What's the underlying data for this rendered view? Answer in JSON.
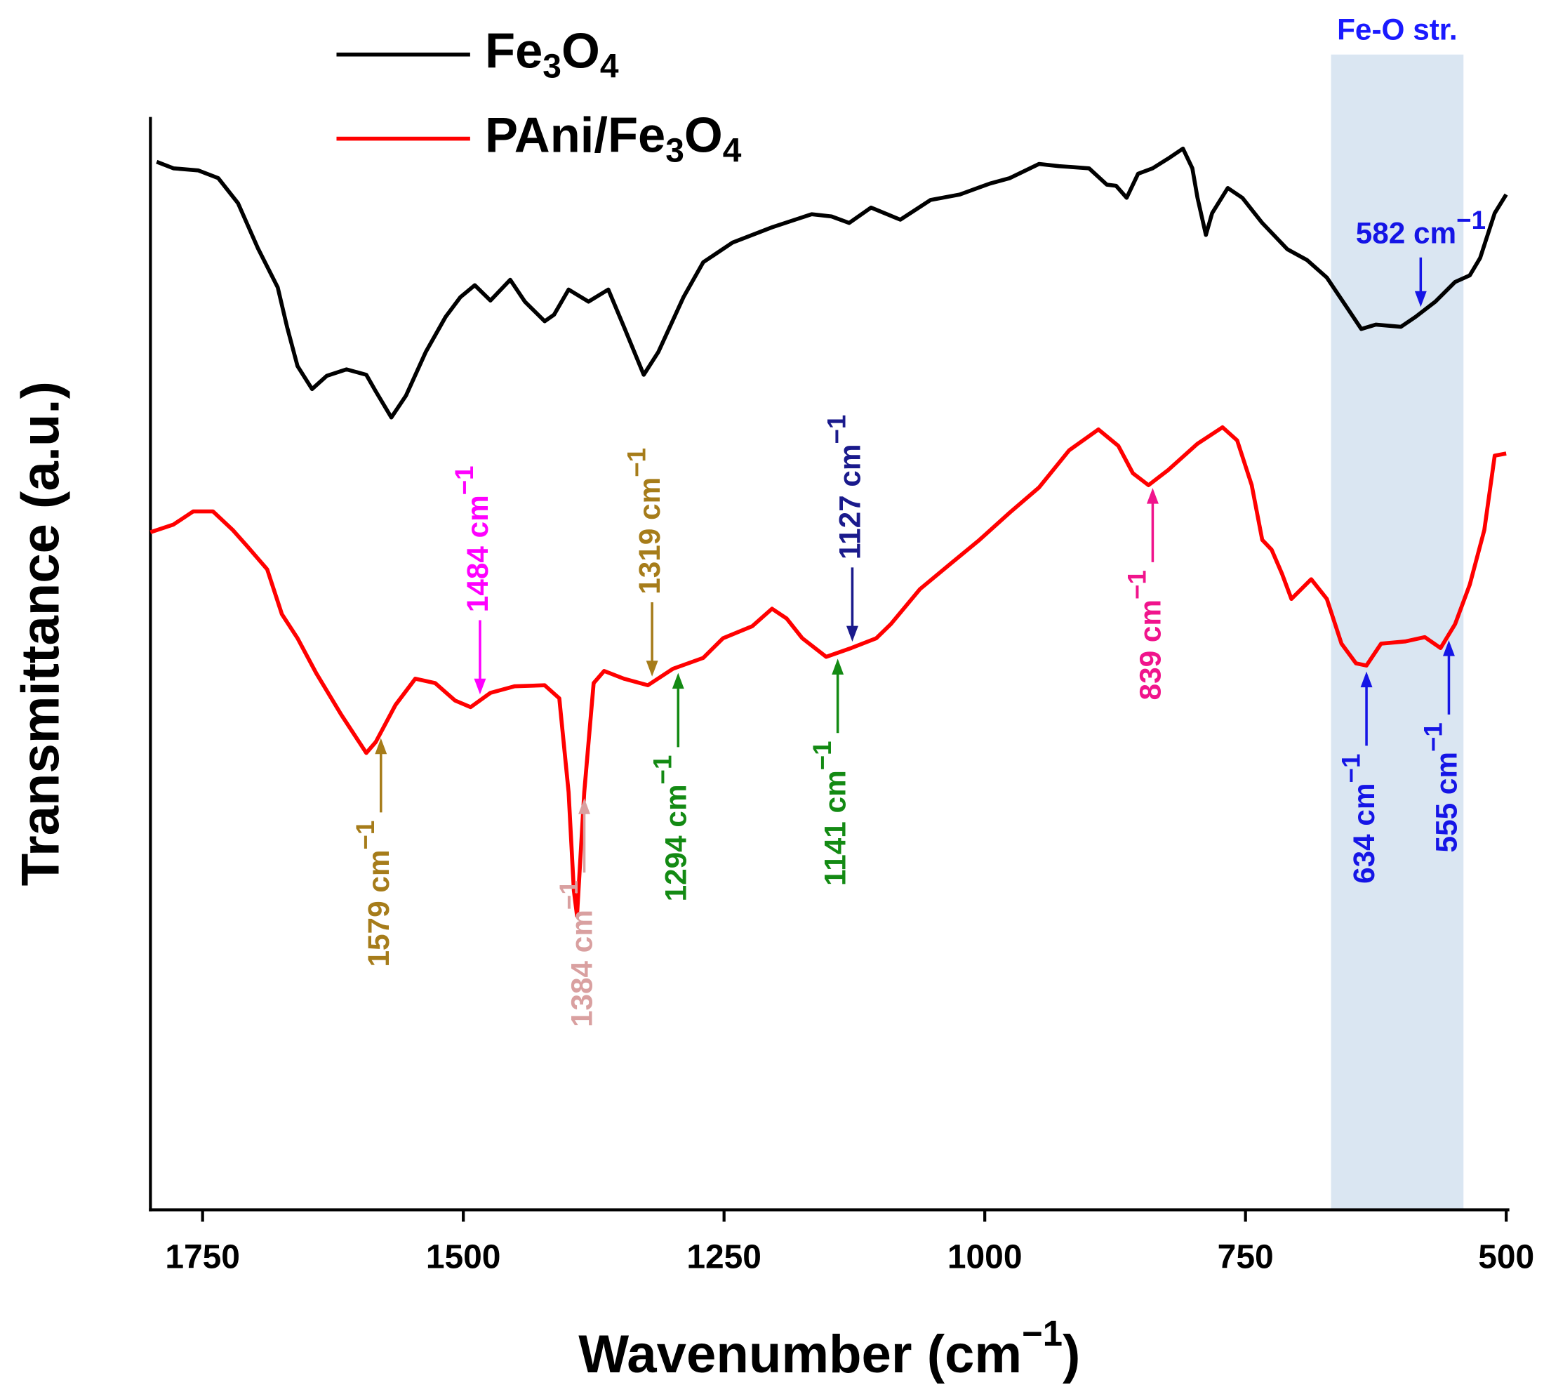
{
  "chart_data": {
    "type": "line",
    "xlabel": [
      "Wavenumber (cm",
      "−1",
      ")"
    ],
    "ylabel": "Transmittance (a.u.)",
    "xlim": [
      1800,
      497
    ],
    "ylim": [
      0,
      100
    ],
    "xticks": [
      1750,
      1500,
      1250,
      1000,
      750,
      500
    ],
    "legend": "top-left",
    "band": {
      "xlim": [
        668,
        541
      ],
      "label": "Fe-O str.",
      "color": "#dae6f2",
      "label_color": "#1a1aff"
    },
    "series": [
      {
        "name": "Fe3O4",
        "color": "#000000",
        "x": [
          1794,
          1778,
          1754,
          1735,
          1716,
          1697,
          1678,
          1669,
          1659,
          1645,
          1631,
          1612,
          1593,
          1584,
          1569,
          1555,
          1536,
          1517,
          1503,
          1489,
          1474,
          1455,
          1441,
          1422,
          1413,
          1399,
          1380,
          1361,
          1346,
          1327,
          1313,
          1289,
          1270,
          1242,
          1204,
          1166,
          1147,
          1130,
          1109,
          1081,
          1052,
          1024,
          995,
          976,
          948,
          929,
          900,
          883,
          874,
          864,
          853,
          839,
          824,
          810,
          801,
          796,
          788,
          782,
          767,
          753,
          734,
          710,
          691,
          672,
          653,
          639,
          625,
          601,
          587,
          568,
          549,
          535,
          525,
          511,
          500
        ],
        "values": [
          95.9,
          95.3,
          95.1,
          94.4,
          92.1,
          88.0,
          84.4,
          80.8,
          77.2,
          75.1,
          76.3,
          76.9,
          76.4,
          74.9,
          72.5,
          74.5,
          78.5,
          81.7,
          83.5,
          84.6,
          83.2,
          85.1,
          83.1,
          81.3,
          81.9,
          84.2,
          83.1,
          84.2,
          80.8,
          76.4,
          78.5,
          83.5,
          86.7,
          88.5,
          89.9,
          91.1,
          90.9,
          90.3,
          91.7,
          90.6,
          92.4,
          92.9,
          93.9,
          94.4,
          95.7,
          95.5,
          95.3,
          93.8,
          93.7,
          92.6,
          94.8,
          95.3,
          96.2,
          97.1,
          95.3,
          92.6,
          89.2,
          91.2,
          93.5,
          92.6,
          90.3,
          87.9,
          86.9,
          85.3,
          82.6,
          80.6,
          81.0,
          80.8,
          81.7,
          83.1,
          84.9,
          85.5,
          87.1,
          91.2,
          92.9
        ]
      },
      {
        "name": "PAni/Fe3O4",
        "color": "#ff0000",
        "x": [
          1800,
          1778,
          1759,
          1740,
          1721,
          1707,
          1688,
          1674,
          1659,
          1641,
          1617,
          1593,
          1584,
          1565,
          1546,
          1527,
          1508,
          1493,
          1474,
          1451,
          1422,
          1408,
          1399,
          1394,
          1391,
          1384,
          1375,
          1365,
          1346,
          1323,
          1299,
          1270,
          1251,
          1223,
          1204,
          1190,
          1175,
          1152,
          1128,
          1104,
          1090,
          1062,
          1033,
          1005,
          976,
          948,
          919,
          891,
          872,
          858,
          843,
          824,
          796,
          772,
          758,
          744,
          734,
          725,
          715,
          706,
          687,
          672,
          658,
          644,
          634,
          620,
          597,
          578,
          563,
          549,
          535,
          521,
          511,
          500
        ],
        "values": [
          62.0,
          62.7,
          63.9,
          63.9,
          62.2,
          60.7,
          58.6,
          54.5,
          52.3,
          49.1,
          45.3,
          41.8,
          42.8,
          46.2,
          48.6,
          48.2,
          46.6,
          46.0,
          47.3,
          47.9,
          48.0,
          46.8,
          38.2,
          29.2,
          26.9,
          38.2,
          48.2,
          49.3,
          48.6,
          48.0,
          49.5,
          50.5,
          52.3,
          53.4,
          55.0,
          54.1,
          52.3,
          50.6,
          51.4,
          52.3,
          53.6,
          56.8,
          59.1,
          61.3,
          63.8,
          66.1,
          69.5,
          71.4,
          69.9,
          67.4,
          66.3,
          67.7,
          70.1,
          71.6,
          70.4,
          66.3,
          61.3,
          60.4,
          58.2,
          55.9,
          57.7,
          55.9,
          51.8,
          50.0,
          49.8,
          51.8,
          52.0,
          52.4,
          51.4,
          53.6,
          57.2,
          62.2,
          69.0,
          69.2
        ]
      }
    ],
    "annotations": [
      {
        "x": 1579,
        "label": [
          "1579 cm",
          "−1"
        ],
        "color": "#a67c1a",
        "series": 1,
        "arrow": "up"
      },
      {
        "x": 1484,
        "label": [
          "1484 cm",
          "−1"
        ],
        "color": "#ff00ff",
        "series": 1,
        "arrow": "down"
      },
      {
        "x": 1384,
        "label": [
          "1384 cm",
          "−1"
        ],
        "color": "#d9a0a0",
        "series": 1,
        "arrow": "up"
      },
      {
        "x": 1319,
        "label": [
          "1319 cm",
          "−1"
        ],
        "color": "#a67c1a",
        "series": 1,
        "arrow": "down"
      },
      {
        "x": 1294,
        "label": [
          "1294 cm",
          "−1"
        ],
        "color": "#138a13",
        "series": 1,
        "arrow": "up"
      },
      {
        "x": 1141,
        "label": [
          "1141 cm",
          "−1"
        ],
        "color": "#138a13",
        "series": 1,
        "arrow": "up"
      },
      {
        "x": 1127,
        "label": [
          "1127 cm",
          "−1"
        ],
        "color": "#1a1a8c",
        "series": 1,
        "arrow": "down"
      },
      {
        "x": 839,
        "label": [
          "839 cm",
          "−1"
        ],
        "color": "#f0148c",
        "series": 1,
        "arrow": "up"
      },
      {
        "x": 634,
        "label": [
          "634 cm",
          "−1"
        ],
        "color": "#1515e6",
        "series": 1,
        "arrow": "up"
      },
      {
        "x": 555,
        "label": [
          "555 cm",
          "−1"
        ],
        "color": "#1515e6",
        "series": 1,
        "arrow": "up"
      },
      {
        "x": 582,
        "label": [
          "582 cm",
          "−1"
        ],
        "color": "#1515e6",
        "series": 0,
        "arrow": "down",
        "horizontal": true
      }
    ]
  }
}
